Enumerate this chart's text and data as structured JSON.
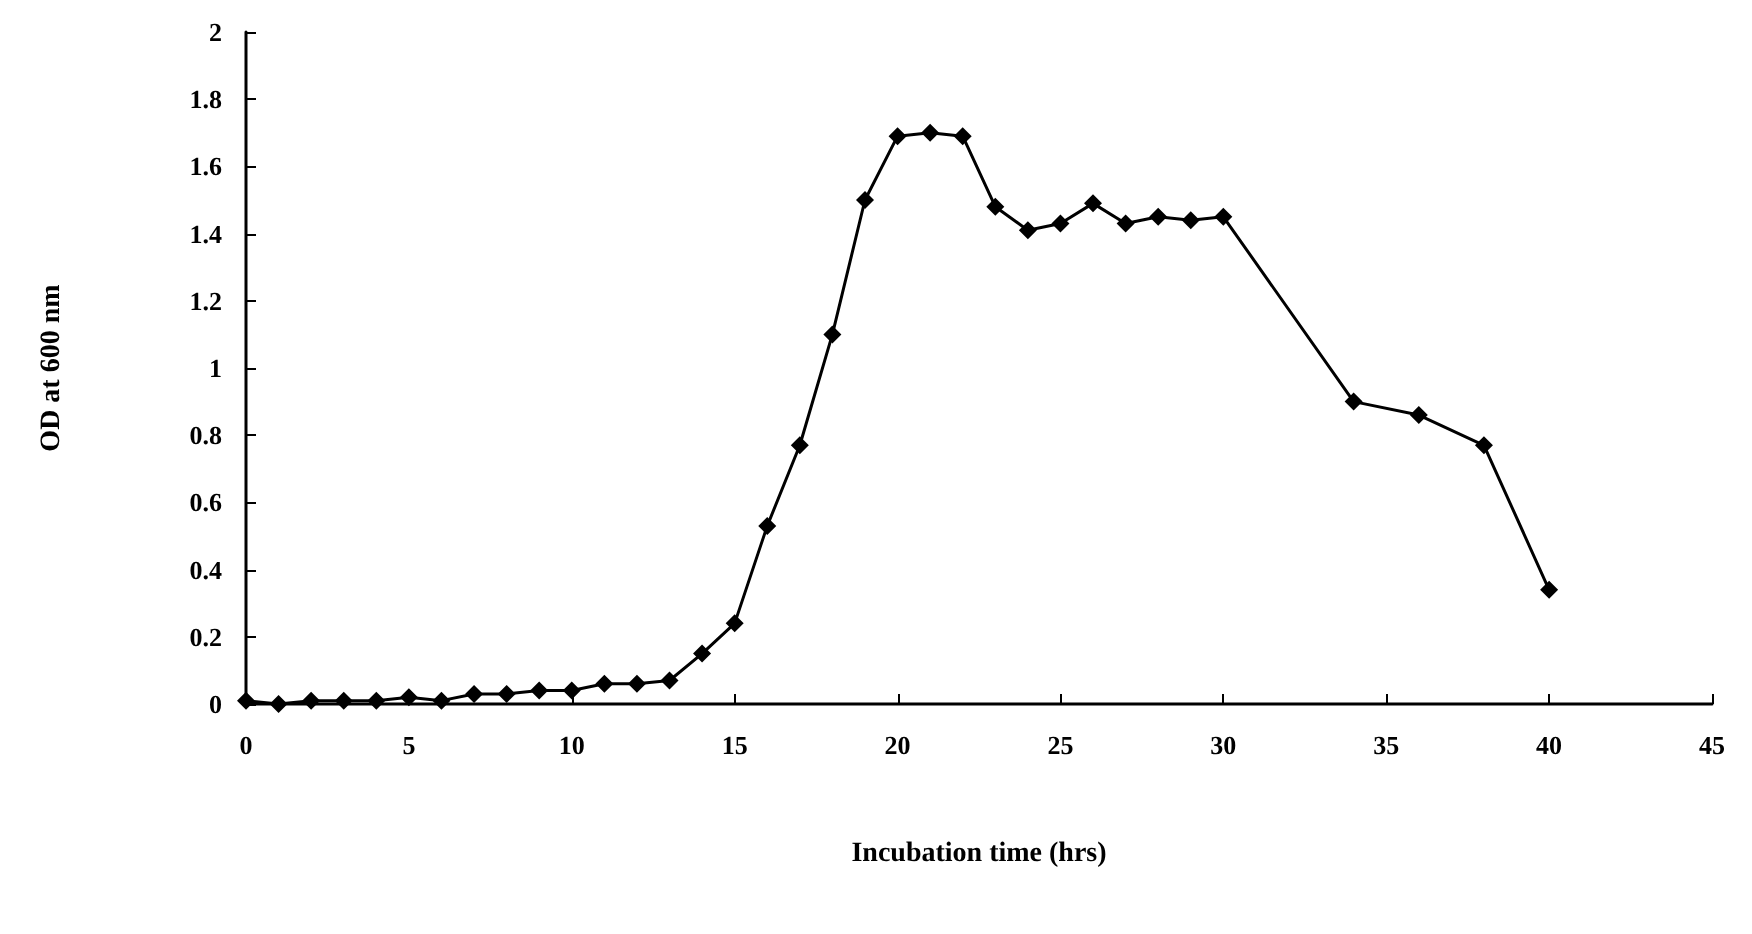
{
  "chart_data": {
    "type": "line",
    "xlabel": "Incubation time (hrs)",
    "ylabel": "OD at 600 nm",
    "x": [
      0,
      1,
      2,
      3,
      4,
      5,
      6,
      7,
      8,
      9,
      10,
      11,
      12,
      13,
      14,
      15,
      16,
      17,
      18,
      19,
      20,
      21,
      22,
      23,
      24,
      25,
      26,
      27,
      28,
      29,
      30,
      34,
      36,
      38,
      40
    ],
    "series": [
      {
        "color": "#000000",
        "values": [
          0.01,
          0,
          0.01,
          0.01,
          0.01,
          0.02,
          0.01,
          0.03,
          0.03,
          0.04,
          0.04,
          0.06,
          0.06,
          0.07,
          0.15,
          0.24,
          0.53,
          0.77,
          1.1,
          1.5,
          1.69,
          1.7,
          1.69,
          1.48,
          1.41,
          1.43,
          1.49,
          1.43,
          1.45,
          1.44,
          1.45,
          0.9,
          0.86,
          0.77,
          0.34
        ]
      }
    ],
    "xlim": [
      0,
      45
    ],
    "xticks": [
      0,
      5,
      10,
      15,
      20,
      25,
      30,
      35,
      40,
      45
    ],
    "ylim": [
      0,
      2
    ],
    "yticks": [
      0,
      0.2,
      0.4,
      0.6,
      0.8,
      1,
      1.2,
      1.4,
      1.6,
      1.8,
      2
    ],
    "grid": false,
    "marker": "diamond",
    "line_style": "solid"
  }
}
